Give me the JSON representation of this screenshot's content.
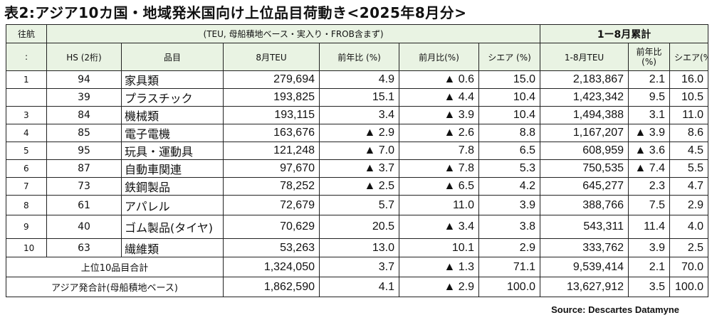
{
  "title": "表2:アジア10カ国・地域発米国向け上位品目荷動き<2025年8月分>",
  "header": {
    "direction": "往航",
    "note": "(TEU, 母船積地ベース・実入り・FROB含まず)",
    "cumulative": "1ー8月累計"
  },
  "columns": {
    "rank": ":",
    "hs": "HS (2桁)",
    "item": "品目",
    "teu": "8月TEU",
    "yoy": "前年比 (%)",
    "mom": "前月比(%)",
    "share": "シエア (%)",
    "cum_teu": "1-8月TEU",
    "cum_yoy": "前年比(%)",
    "cum_share": "シエア(%)"
  },
  "rows": [
    {
      "rank": "1",
      "hs": "94",
      "item": "家具類",
      "teu": "279,694",
      "yoy": "4.9",
      "mom": "▲ 0.6",
      "share": "15.0",
      "cum_teu": "2,183,867",
      "cum_yoy": "2.1",
      "cum_share": "16.0"
    },
    {
      "rank": "",
      "hs": "39",
      "item": "プラスチック",
      "teu": "193,825",
      "yoy": "15.1",
      "mom": "▲ 4.4",
      "share": "10.4",
      "cum_teu": "1,423,342",
      "cum_yoy": "9.5",
      "cum_share": "10.5"
    },
    {
      "rank": "3",
      "hs": "84",
      "item": "機械類",
      "teu": "193,115",
      "yoy": "3.4",
      "mom": "▲ 3.9",
      "share": "10.4",
      "cum_teu": "1,494,388",
      "cum_yoy": "3.1",
      "cum_share": "11.0"
    },
    {
      "rank": "4",
      "hs": "85",
      "item": "電子電機",
      "teu": "163,676",
      "yoy": "▲ 2.9",
      "mom": "▲ 2.6",
      "share": "8.8",
      "cum_teu": "1,167,207",
      "cum_yoy": "▲ 3.9",
      "cum_share": "8.6"
    },
    {
      "rank": "5",
      "hs": "95",
      "item": "玩具・運動具",
      "teu": "121,248",
      "yoy": "▲ 7.0",
      "mom": "7.8",
      "share": "6.5",
      "cum_teu": "608,959",
      "cum_yoy": "▲ 3.6",
      "cum_share": "4.5"
    },
    {
      "rank": "6",
      "hs": "87",
      "item": "自動車関連",
      "teu": "97,670",
      "yoy": "▲ 3.7",
      "mom": "▲ 7.8",
      "share": "5.3",
      "cum_teu": "750,535",
      "cum_yoy": "▲ 7.4",
      "cum_share": "5.5"
    },
    {
      "rank": "7",
      "hs": "73",
      "item": "鉄鋼製品",
      "teu": "78,252",
      "yoy": "▲ 2.5",
      "mom": "▲ 6.5",
      "share": "4.2",
      "cum_teu": "645,277",
      "cum_yoy": "2.3",
      "cum_share": "4.7"
    },
    {
      "rank": "8",
      "hs": "61",
      "item": "アパレル",
      "teu": "72,679",
      "yoy": "5.7",
      "mom": "11.0",
      "share": "3.9",
      "cum_teu": "388,766",
      "cum_yoy": "7.5",
      "cum_share": "2.9"
    },
    {
      "rank": "9",
      "hs": "40",
      "item": "ゴム製品(タイヤ)",
      "teu": "70,629",
      "yoy": "20.5",
      "mom": "▲ 3.4",
      "share": "3.8",
      "cum_teu": "543,311",
      "cum_yoy": "11.4",
      "cum_share": "4.0"
    },
    {
      "rank": "10",
      "hs": "63",
      "item": "繊維類",
      "teu": "53,263",
      "yoy": "13.0",
      "mom": "10.1",
      "share": "2.9",
      "cum_teu": "333,762",
      "cum_yoy": "3.9",
      "cum_share": "2.5"
    }
  ],
  "totals": [
    {
      "label": "上位10品目合計",
      "teu": "1,324,050",
      "yoy": "3.7",
      "mom": "▲ 1.3",
      "share": "71.1",
      "cum_teu": "9,539,414",
      "cum_yoy": "2.1",
      "cum_share": "70.0"
    },
    {
      "label": "アジア発合計(母船積地ベース)",
      "teu": "1,862,590",
      "yoy": "4.1",
      "mom": "▲ 2.9",
      "share": "100.0",
      "cum_teu": "13,627,912",
      "cum_yoy": "3.5",
      "cum_share": "100.0"
    }
  ],
  "source": "Source: Descartes Datamyne",
  "colors": {
    "header_bg": "#e9f3e3",
    "border": "#222222"
  }
}
